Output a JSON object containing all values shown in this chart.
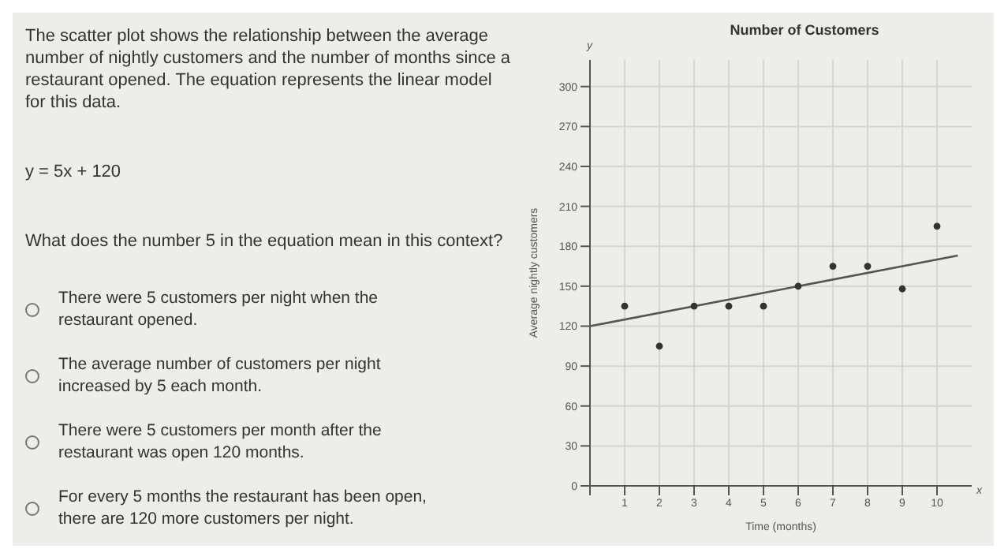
{
  "chart_data": {
    "type": "scatter",
    "title": "Number of Customers",
    "xlabel": "Time (months)",
    "ylabel": "Average nightly customers",
    "x": [
      1,
      2,
      3,
      4,
      5,
      6,
      7,
      8,
      9,
      10
    ],
    "series": [
      {
        "color": "#333333",
        "values": [
          135,
          105,
          135,
          135,
          135,
          150,
          165,
          165,
          148,
          195
        ]
      },
      {
        "type": "line",
        "color": "#555555",
        "x": [
          0,
          10.6
        ],
        "values": [
          120,
          173
        ]
      }
    ],
    "xlim": [
      0,
      11
    ],
    "xticks": [
      {
        "value": 0,
        "label": null
      },
      1,
      2,
      3,
      4,
      5,
      6,
      7,
      8,
      9,
      10
    ],
    "ylim": [
      0,
      320
    ],
    "yticks": [
      0,
      30,
      60,
      90,
      120,
      150,
      180,
      210,
      240,
      270,
      300
    ],
    "grid": true,
    "annotations": [
      "The scatter plot shows the relationship between the average number of nightly customers and the number of months since a restaurant opened. The equation represents the linear model for this data.",
      "y = 5x + 120",
      "What does the number 5 in the equation mean in this context?",
      "There were 5 customers per night when the restaurant opened.",
      "The average number of customers per night increased by 5 each month.",
      "There were 5 customers per month after the restaurant was open 120 months.",
      "For every 5 months the restaurant has been open, there are 120 more customers per night.",
      "x",
      "y"
    ]
  }
}
